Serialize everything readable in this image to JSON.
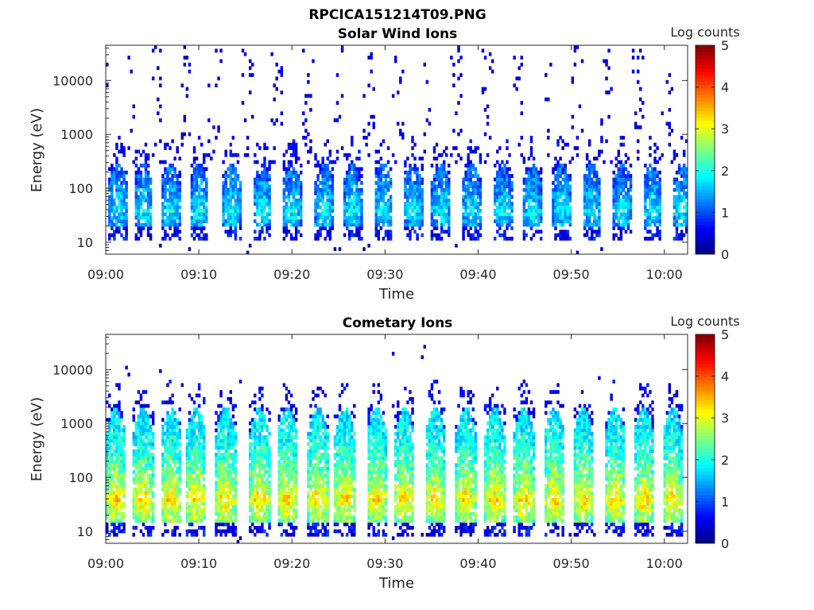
{
  "figure": {
    "title": "RPCICA151214T09.PNG"
  },
  "chart_data": [
    {
      "type": "heatmap",
      "title": "Solar Wind Ions",
      "xlabel": "Time",
      "ylabel": "Energy (eV)",
      "x_ticks": [
        "09:00",
        "09:10",
        "09:20",
        "09:30",
        "09:40",
        "09:50",
        "10:00"
      ],
      "x_range_minutes": [
        0,
        62.5
      ],
      "y_scale": "log",
      "y_ticks": [
        10,
        100,
        1000,
        10000
      ],
      "y_tick_labels": [
        "10",
        "100",
        "1000",
        "10000"
      ],
      "y_range": [
        6,
        45000
      ],
      "colorbar": {
        "label": "Log counts",
        "range": [
          0,
          5
        ],
        "ticks": [
          "0",
          "1",
          "2",
          "3",
          "4",
          "5"
        ],
        "colormap": "jet"
      },
      "bursts": {
        "start_minutes": [
          0.3,
          3.0,
          6.0,
          9.0,
          12.5,
          15.8,
          19.0,
          22.5,
          25.5,
          28.8,
          32.0,
          35.0,
          38.3,
          41.7,
          44.8,
          48.0,
          51.2,
          54.5,
          57.7,
          60.9
        ],
        "duration_minutes": 2.0,
        "core_energy_range_eV": [
          20,
          300
        ],
        "core_log_counts_range": [
          0.6,
          2.2
        ],
        "peak_energy_eV": 40,
        "peak_log_counts": 1.9
      },
      "background_log_counts": 0.3,
      "background_energy_range_eV": [
        300,
        45000
      ]
    },
    {
      "type": "heatmap",
      "title": "Cometary Ions",
      "xlabel": "Time",
      "ylabel": "Energy (eV)",
      "x_ticks": [
        "09:00",
        "09:10",
        "09:20",
        "09:30",
        "09:40",
        "09:50",
        "10:00"
      ],
      "x_range_minutes": [
        0,
        62.5
      ],
      "y_scale": "log",
      "y_ticks": [
        10,
        100,
        1000,
        10000
      ],
      "y_tick_labels": [
        "10",
        "100",
        "1000",
        "10000"
      ],
      "y_range": [
        6,
        45000
      ],
      "colorbar": {
        "label": "Log counts",
        "range": [
          0,
          5
        ],
        "ticks": [
          "0",
          "1",
          "2",
          "3",
          "4",
          "5"
        ],
        "colormap": "jet"
      },
      "bursts": {
        "start_minutes": [
          0.0,
          2.9,
          5.9,
          8.6,
          11.8,
          15.4,
          18.4,
          21.7,
          24.6,
          28.0,
          31.0,
          34.3,
          37.6,
          40.7,
          43.8,
          47.1,
          50.2,
          53.6,
          56.7,
          59.8
        ],
        "duration_minutes": 2.2,
        "core_energy_range_eV": [
          15,
          2000
        ],
        "core_log_counts_range": [
          1.5,
          3.6
        ],
        "peak_energy_eV": 40,
        "peak_log_counts": 3.4
      },
      "background_log_counts": 0.3,
      "background_energy_range_eV": [
        2000,
        30000
      ]
    }
  ]
}
